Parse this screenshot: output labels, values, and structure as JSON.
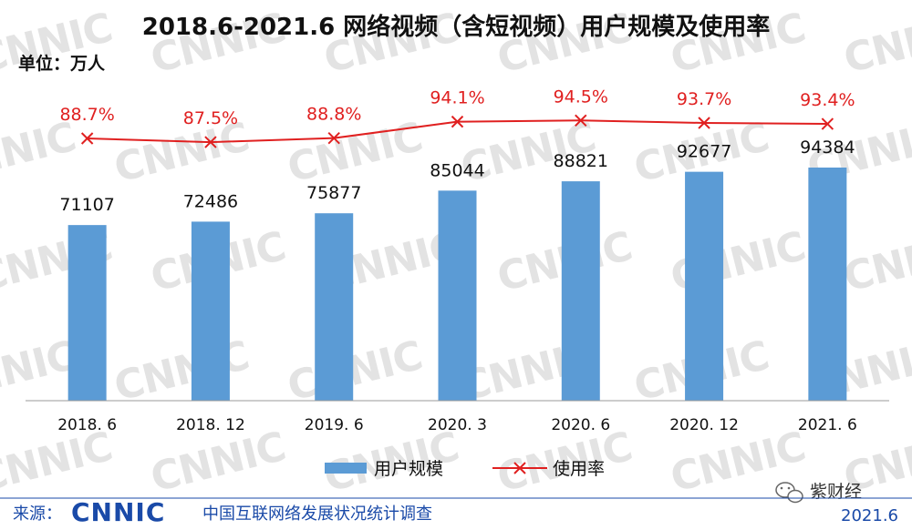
{
  "chart_data": {
    "type": "bar",
    "title": "2018.6-2021.6 网络视频（含短视频）用户规模及使用率",
    "unit": "单位：万人",
    "categories": [
      "2018. 6",
      "2018. 12",
      "2019. 6",
      "2020. 3",
      "2020. 6",
      "2020. 12",
      "2021. 6"
    ],
    "series": [
      {
        "name": "用户规模",
        "type": "bar",
        "values": [
          71107,
          72486,
          75877,
          85044,
          88821,
          92677,
          94384
        ],
        "labels": [
          "71107",
          "72486",
          "75877",
          "85044",
          "88821",
          "92677",
          "94384"
        ],
        "color": "#5b9bd5"
      },
      {
        "name": "使用率",
        "type": "line",
        "values": [
          88.7,
          87.5,
          88.8,
          94.1,
          94.5,
          93.7,
          93.4
        ],
        "labels": [
          "88.7%",
          "87.5%",
          "88.8%",
          "94.1%",
          "94.5%",
          "93.7%",
          "93.4%"
        ],
        "color": "#e02020",
        "marker": "x"
      }
    ],
    "legend_position": "bottom-center",
    "grid": false
  },
  "watermark": "CNNIC",
  "footer": {
    "source_label": "来源：",
    "source_logo": "CNNIC",
    "source_name": "中国互联网络发展状况统计调查",
    "date": "2021.6"
  },
  "badge": {
    "icon": "wechat-icon",
    "text": "紫财经"
  }
}
